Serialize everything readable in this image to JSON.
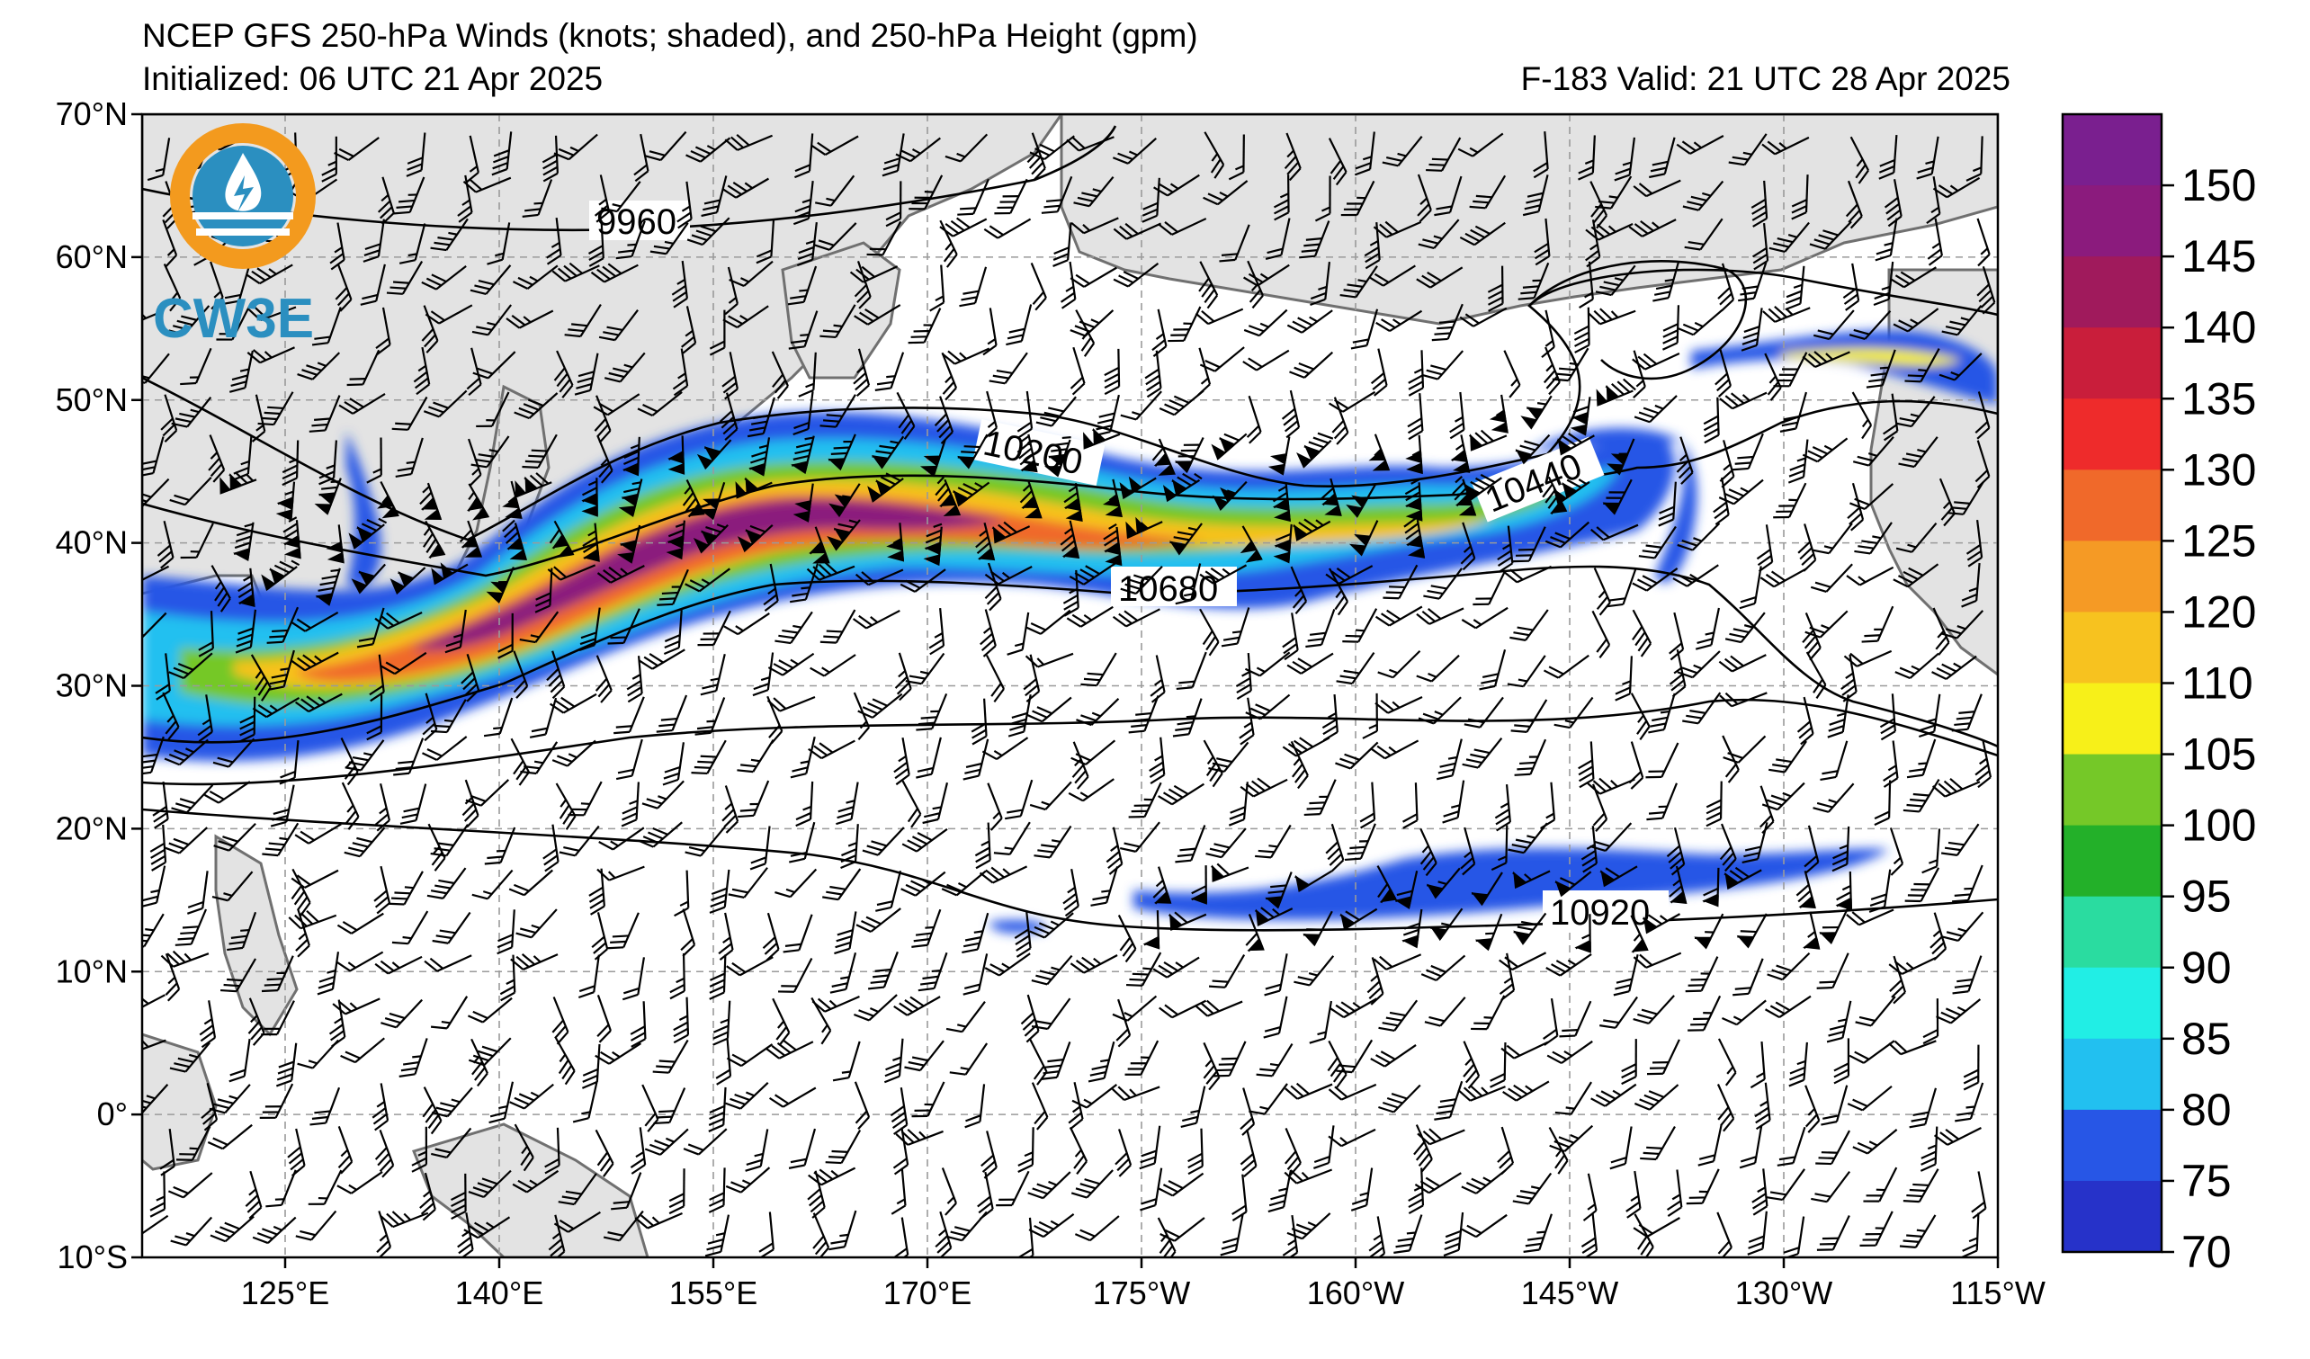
{
  "header": {
    "title": "NCEP GFS 250-hPa Winds (knots; shaded), and 250-hPa Height (gpm)",
    "initialized": "Initialized: 06 UTC 21 Apr 2025",
    "valid": "F-183  Valid: 21 UTC 28 Apr 2025"
  },
  "logo": {
    "text": "CW3E",
    "ring_color": "#f39a1e",
    "water_color": "#2b8fc0"
  },
  "axes": {
    "lat_labels": [
      "70°N",
      "60°N",
      "50°N",
      "40°N",
      "30°N",
      "20°N",
      "10°N",
      "0°",
      "10°S"
    ],
    "lon_labels": [
      "125°E",
      "140°E",
      "155°E",
      "170°E",
      "175°W",
      "160°W",
      "145°W",
      "130°W",
      "115°W"
    ]
  },
  "colorbar": {
    "labels": [
      "150",
      "145",
      "140",
      "135",
      "130",
      "125",
      "120",
      "110",
      "105",
      "100",
      "95",
      "90",
      "85",
      "80",
      "75",
      "70"
    ],
    "colors": [
      "#7a1f8f",
      "#8b1b7d",
      "#a01a5c",
      "#c91e3b",
      "#ee2b2b",
      "#f0692a",
      "#f59a25",
      "#f7c21f",
      "#f7f019",
      "#75c828",
      "#23b029",
      "#2adca0",
      "#21eee5",
      "#22c0f0",
      "#2756e6",
      "#2632c9"
    ]
  },
  "contour_labels": [
    "9960",
    "10200",
    "10440",
    "10680",
    "10920"
  ],
  "colors": {
    "land": "#e3e3e3",
    "coast": "#707070",
    "grid": "#9a9a9a"
  }
}
